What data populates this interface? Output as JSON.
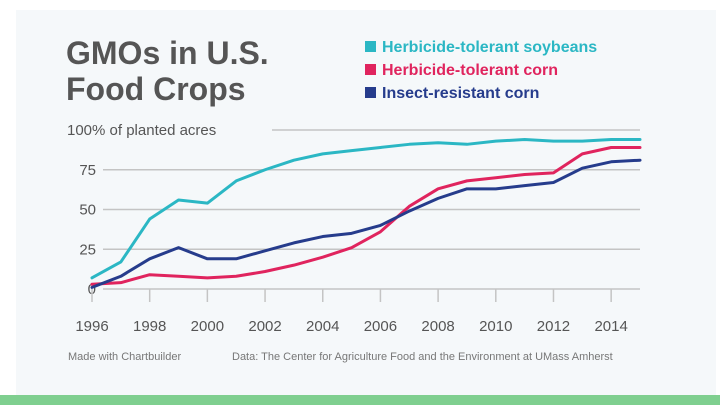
{
  "chart_data": {
    "type": "line",
    "title_lines": [
      "GMOs in U.S.",
      "Food Crops"
    ],
    "ylabel": "% of planted acres",
    "first_y_tick_prefix": "100",
    "ylim": [
      0,
      100
    ],
    "xlim": [
      1996,
      2015
    ],
    "y_ticks": [
      0,
      25,
      50,
      75,
      100
    ],
    "x_ticks": [
      1996,
      1998,
      2000,
      2002,
      2004,
      2006,
      2008,
      2010,
      2012,
      2014
    ],
    "x": [
      1996,
      1997,
      1998,
      1999,
      2000,
      2001,
      2002,
      2003,
      2004,
      2005,
      2006,
      2007,
      2008,
      2009,
      2010,
      2011,
      2012,
      2013,
      2014,
      2015
    ],
    "series": [
      {
        "name": "Herbicide-tolerant soybeans",
        "color": "#2bb7c4",
        "values": [
          7,
          17,
          44,
          56,
          54,
          68,
          75,
          81,
          85,
          87,
          89,
          91,
          92,
          91,
          93,
          94,
          93,
          93,
          94,
          94
        ]
      },
      {
        "name": "Herbicide-tolerant corn",
        "color": "#e0245e",
        "values": [
          3,
          4,
          9,
          8,
          7,
          8,
          11,
          15,
          20,
          26,
          36,
          52,
          63,
          68,
          70,
          72,
          73,
          85,
          89,
          89
        ]
      },
      {
        "name": "Insect-resistant corn",
        "color": "#263c8c",
        "values": [
          1,
          8,
          19,
          26,
          19,
          19,
          24,
          29,
          33,
          35,
          40,
          49,
          57,
          63,
          63,
          65,
          67,
          76,
          80,
          81
        ]
      }
    ],
    "grid": true,
    "legend_position": "top-right"
  },
  "footer": {
    "credit": "Made with Chartbuilder",
    "source": "Data: The Center for Agriculture Food and the Environment at UMass Amherst"
  }
}
